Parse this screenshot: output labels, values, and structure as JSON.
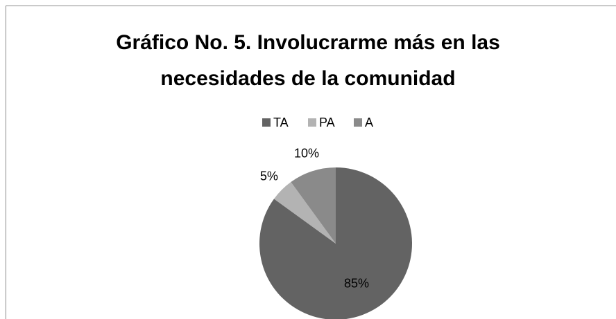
{
  "chart_data": {
    "type": "pie",
    "title": "Gráfico No. 5. Involucrarme más en las necesidades de la comunidad",
    "categories": [
      "TA",
      "PA",
      "A"
    ],
    "values": [
      85,
      5,
      10
    ],
    "value_labels": [
      "85%",
      "5%",
      "10%"
    ],
    "colors": [
      "#636363",
      "#b3b3b3",
      "#8a8a8a"
    ],
    "legend": "top"
  }
}
